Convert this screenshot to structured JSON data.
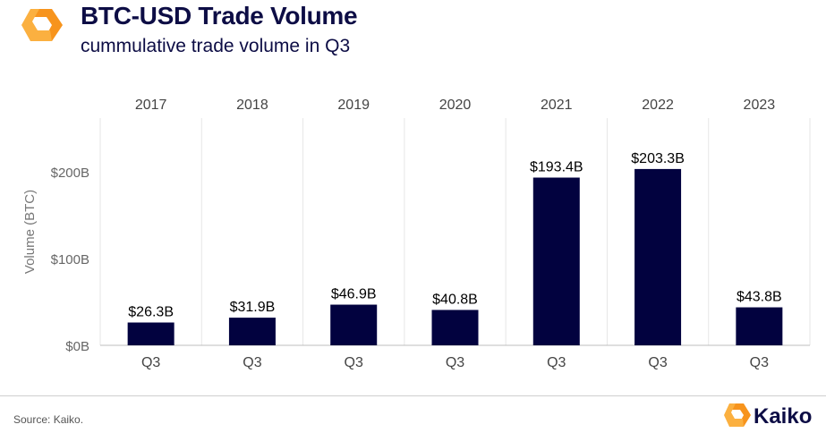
{
  "header": {
    "title": "BTC-USD Trade Volume",
    "subtitle": "cummulative trade volume in Q3"
  },
  "footer": {
    "source": "Source: Kaiko.",
    "brand": "Kaiko"
  },
  "colors": {
    "bar": "#02023f",
    "logo_orange": "#f7941d",
    "logo_orange_light": "#fbb040",
    "grid": "#e6e6e6",
    "tick_text": "#666666"
  },
  "chart_data": {
    "type": "bar",
    "title": "BTC-USD Trade Volume",
    "subtitle": "cummulative trade volume in Q3",
    "ylabel": "Volume (BTC)",
    "xlabel": "",
    "years": [
      "2017",
      "2018",
      "2019",
      "2020",
      "2021",
      "2022",
      "2023"
    ],
    "categories": [
      "Q3",
      "Q3",
      "Q3",
      "Q3",
      "Q3",
      "Q3",
      "Q3"
    ],
    "values": [
      26.3,
      31.9,
      46.9,
      40.8,
      193.4,
      203.3,
      43.8
    ],
    "data_labels": [
      "$26.3B",
      "$31.9B",
      "$46.9B",
      "$40.8B",
      "$193.4B",
      "$203.3B",
      "$43.8B"
    ],
    "y_ticks": [
      0,
      100,
      200
    ],
    "y_tick_labels": [
      "$0B",
      "$100B",
      "$200B"
    ],
    "ylim": [
      0,
      262
    ],
    "grid": "vertical panel separators",
    "legend": "none"
  }
}
